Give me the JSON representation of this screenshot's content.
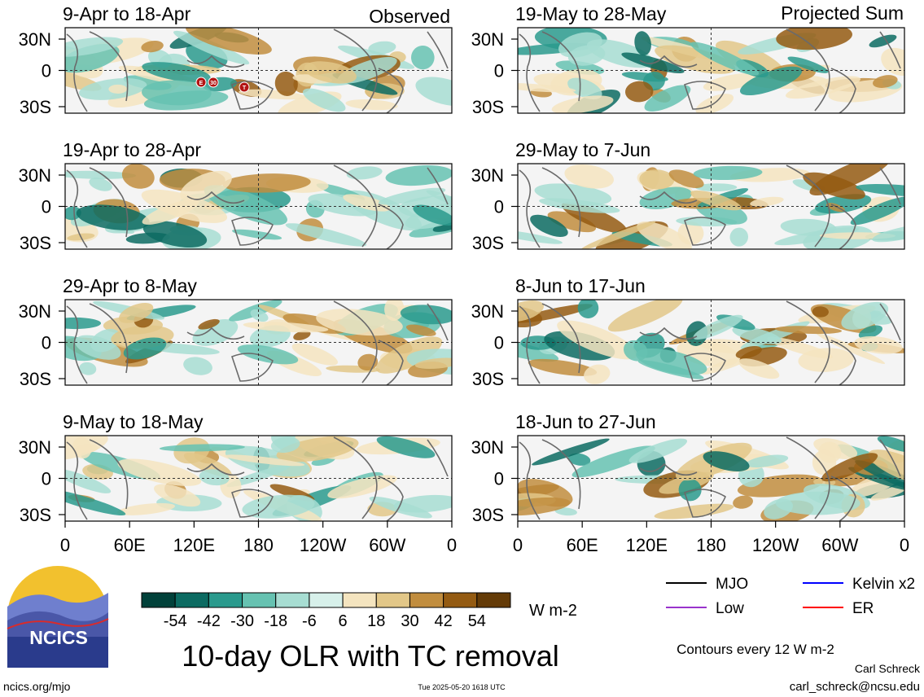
{
  "figure": {
    "title": "10-day OLR with TC removal",
    "units": "W m-2",
    "contour_note": "Contours every 12 W m-2",
    "author": "Carl Schreck",
    "email": "carl_schreck@ncsu.edu",
    "website": "ncics.org/mjo",
    "timestamp": "Tue 2025-05-20 1618 UTC",
    "logo_text": "NCICS",
    "observed_label": "Observed",
    "projected_label": "Projected Sum"
  },
  "colorbar": {
    "labels": [
      "-54",
      "-42",
      "-30",
      "-18",
      "-6",
      "6",
      "18",
      "30",
      "42",
      "54"
    ],
    "colors": [
      "#01413a",
      "#0c6b62",
      "#2a9a8d",
      "#66c2b1",
      "#a7ddd2",
      "#d7f0ea",
      "#f4f4f4",
      "#f4e4bf",
      "#e2c788",
      "#c18d3e",
      "#945b12",
      "#643b07"
    ]
  },
  "legend": [
    {
      "label": "MJO",
      "color": "#000000"
    },
    {
      "label": "Kelvin x2",
      "color": "#0000ff"
    },
    {
      "label": "Low",
      "color": "#9933cc"
    },
    {
      "label": "ER",
      "color": "#ff0000"
    }
  ],
  "chart_data": {
    "type": "heatmap",
    "x_ticks": [
      "0",
      "60E",
      "120E",
      "180",
      "120W",
      "60W",
      "0"
    ],
    "y_ticks": [
      "30N",
      "0",
      "30S"
    ],
    "panels": [
      {
        "period": "9-Apr to 18-Apr",
        "column": "Observed",
        "tc_markers": [
          "E",
          "30",
          "T"
        ]
      },
      {
        "period": "19-Apr to 28-Apr",
        "column": "Observed"
      },
      {
        "period": "29-Apr to 8-May",
        "column": "Observed"
      },
      {
        "period": "9-May to 18-May",
        "column": "Observed"
      },
      {
        "period": "19-May to 28-May",
        "column": "Projected Sum"
      },
      {
        "period": "29-May to 7-Jun",
        "column": "Projected Sum"
      },
      {
        "period": "8-Jun to 17-Jun",
        "column": "Projected Sum"
      },
      {
        "period": "18-Jun to 27-Jun",
        "column": "Projected Sum"
      }
    ]
  }
}
